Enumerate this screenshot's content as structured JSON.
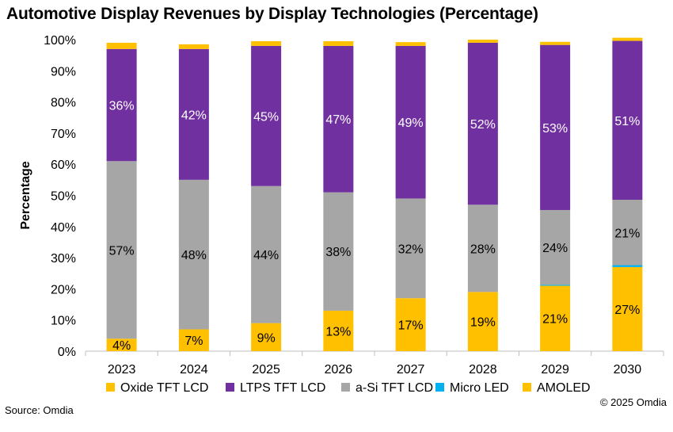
{
  "title": "Automotive Display Revenues by Display Technologies (Percentage)",
  "source": "Source: Omdia",
  "copyright": "© 2025 Omdia",
  "chart_data": {
    "type": "bar",
    "stacked": true,
    "title": "Automotive Display Revenues by Display Technologies (Percentage)",
    "xlabel": "",
    "ylabel": "Percentage",
    "ylim": [
      0,
      100
    ],
    "yticks": [
      "0%",
      "10%",
      "20%",
      "30%",
      "40%",
      "50%",
      "60%",
      "70%",
      "80%",
      "90%",
      "100%"
    ],
    "categories": [
      "2023",
      "2024",
      "2025",
      "2026",
      "2027",
      "2028",
      "2029",
      "2030"
    ],
    "legend_position": "bottom",
    "grid": false,
    "series": [
      {
        "name": "AMOLED",
        "color": "#FFC000",
        "values": [
          4,
          7,
          9,
          13,
          17,
          19,
          21,
          27
        ],
        "labels": [
          "4%",
          "7%",
          "9%",
          "13%",
          "17%",
          "19%",
          "21%",
          "27%"
        ]
      },
      {
        "name": "Micro LED",
        "color": "#00B0F0",
        "values": [
          0,
          0,
          0,
          0,
          0,
          0,
          0.3,
          0.6
        ],
        "labels": [
          "",
          "",
          "",
          "",
          "",
          "",
          "",
          ""
        ]
      },
      {
        "name": "a-Si TFT LCD",
        "color": "#A6A6A6",
        "values": [
          57,
          48,
          44,
          38,
          32,
          28,
          24,
          21
        ],
        "labels": [
          "57%",
          "48%",
          "44%",
          "38%",
          "32%",
          "28%",
          "24%",
          "21%"
        ]
      },
      {
        "name": "LTPS TFT LCD",
        "color": "#7030A0",
        "values": [
          36,
          42,
          45,
          47,
          49,
          52,
          53,
          51
        ],
        "labels": [
          "36%",
          "42%",
          "45%",
          "47%",
          "49%",
          "52%",
          "53%",
          "51%"
        ]
      },
      {
        "name": "Oxide TFT LCD",
        "color": "#FFC000",
        "values": [
          2,
          1.5,
          1.5,
          1.5,
          1.2,
          1,
          1,
          1
        ],
        "labels": [
          "",
          "",
          "",
          "",
          "",
          "",
          "",
          ""
        ]
      }
    ],
    "legend_order": [
      "Oxide TFT LCD",
      "LTPS TFT LCD",
      "a-Si TFT LCD",
      "Micro LED",
      "AMOLED"
    ]
  }
}
